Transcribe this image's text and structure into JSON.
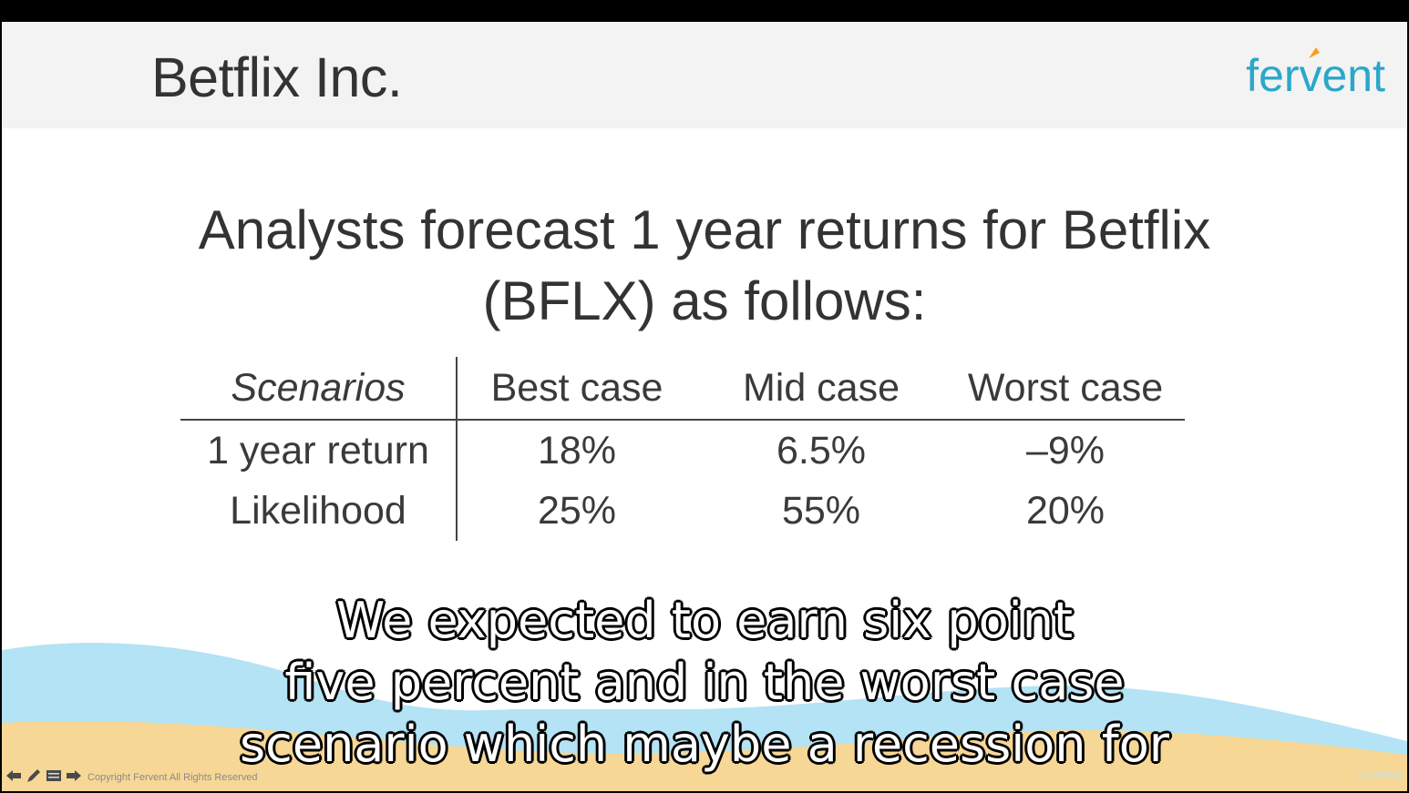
{
  "slide": {
    "title": "Betflix Inc.",
    "logo_text": "fervent",
    "headline_lines": [
      "Analysts forecast 1 year returns for Betflix",
      "(BFLX) as follows:"
    ]
  },
  "table": {
    "headers": [
      "Scenarios",
      "Best case",
      "Mid case",
      "Worst case"
    ],
    "rows": [
      [
        "1 year return",
        "18%",
        "6.5%",
        "–9%"
      ],
      [
        "Likelihood",
        "25%",
        "55%",
        "20%"
      ]
    ]
  },
  "caption": {
    "lines": [
      "We expected to earn six point",
      "five percent and in the worst case",
      "scenario which maybe a recession for"
    ]
  },
  "footer": {
    "copyright": "Copyright Fervent All Rights Reserved",
    "udemy": "Udemy"
  },
  "colors": {
    "accent": "#2aa7c9",
    "logo_flag": "#f7a11a",
    "wave_blue": "#b3e3f4",
    "sand": "#f7d796"
  },
  "icons": [
    "prev-arrow-icon",
    "pen-icon",
    "menu-icon",
    "next-arrow-icon",
    "udemy-icon"
  ]
}
